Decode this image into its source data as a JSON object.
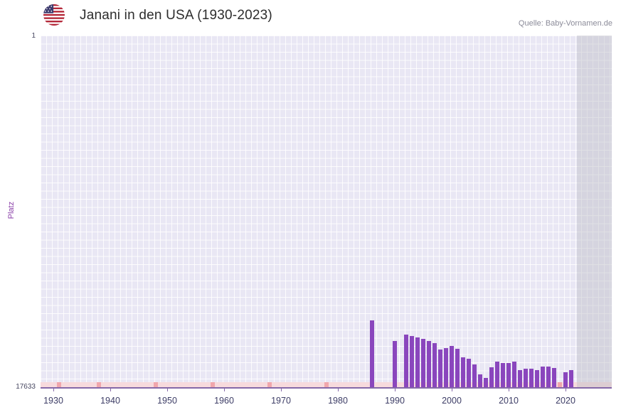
{
  "header": {
    "title": "Janani in den USA (1930-2023)",
    "source": "Quelle: Baby-Vornamen.de",
    "flag_icon": "us-flag-icon"
  },
  "chart_data": {
    "type": "bar",
    "title": "Janani in den USA (1930-2023)",
    "ylabel": "Platz",
    "y_axis": {
      "top_label": "1",
      "bottom_label": "17633",
      "min": 1,
      "max": 17633,
      "inverted": true
    },
    "x_ticks": [
      1930,
      1940,
      1950,
      1960,
      1970,
      1980,
      1990,
      2000,
      2010,
      2020
    ],
    "x_range": [
      1928,
      2028
    ],
    "legend": "none",
    "grid": "on",
    "bar_color": "#8a46bd",
    "no_data_band_color": "#f7dadd",
    "no_data_tick_color": "#f0a6ac",
    "future_band": {
      "start_year": 2022,
      "color": "rgba(188,188,198,0.45)"
    },
    "points": [
      {
        "year": 1986,
        "rank": 14300
      },
      {
        "year": 1990,
        "rank": 15300
      },
      {
        "year": 1992,
        "rank": 15000
      },
      {
        "year": 1993,
        "rank": 15060
      },
      {
        "year": 1994,
        "rank": 15150
      },
      {
        "year": 1995,
        "rank": 15220
      },
      {
        "year": 1996,
        "rank": 15320
      },
      {
        "year": 1997,
        "rank": 15430
      },
      {
        "year": 1998,
        "rank": 15740
      },
      {
        "year": 1999,
        "rank": 15660
      },
      {
        "year": 2000,
        "rank": 15570
      },
      {
        "year": 2001,
        "rank": 15710
      },
      {
        "year": 2002,
        "rank": 16140
      },
      {
        "year": 2003,
        "rank": 16210
      },
      {
        "year": 2004,
        "rank": 16490
      },
      {
        "year": 2005,
        "rank": 16990
      },
      {
        "year": 2006,
        "rank": 17170
      },
      {
        "year": 2007,
        "rank": 16630
      },
      {
        "year": 2008,
        "rank": 16350
      },
      {
        "year": 2009,
        "rank": 16420
      },
      {
        "year": 2010,
        "rank": 16420
      },
      {
        "year": 2011,
        "rank": 16350
      },
      {
        "year": 2012,
        "rank": 16780
      },
      {
        "year": 2013,
        "rank": 16710
      },
      {
        "year": 2014,
        "rank": 16710
      },
      {
        "year": 2015,
        "rank": 16780
      },
      {
        "year": 2016,
        "rank": 16600
      },
      {
        "year": 2017,
        "rank": 16600
      },
      {
        "year": 2018,
        "rank": 16670
      },
      {
        "year": 2020,
        "rank": 16880
      },
      {
        "year": 2021,
        "rank": 16780
      }
    ],
    "no_data_tick_years": [
      1931,
      1938,
      1948,
      1958,
      1968,
      1978,
      2019
    ]
  }
}
